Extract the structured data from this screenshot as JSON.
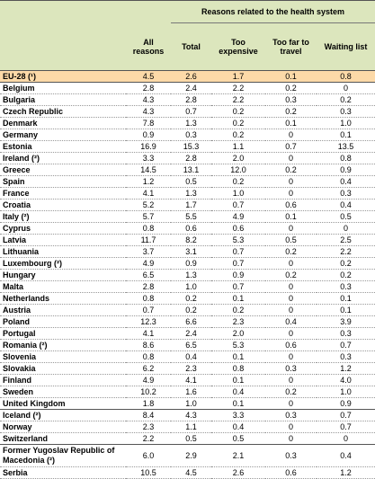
{
  "table": {
    "group_header": "Reasons related to the health system",
    "columns": [
      "All reasons",
      "Total",
      "Too expensive",
      "Too far to travel",
      "Waiting list"
    ],
    "groups": [
      {
        "rows": [
          [
            "EU-28 (¹)",
            "4.5",
            "2.6",
            "1.7",
            "0.1",
            "0.8"
          ]
        ]
      },
      {
        "rows": [
          [
            "Belgium",
            "2.8",
            "2.4",
            "2.2",
            "0.2",
            "0"
          ],
          [
            "Bulgaria",
            "4.3",
            "2.8",
            "2.2",
            "0.3",
            "0.2"
          ],
          [
            "Czech Republic",
            "4.3",
            "0.7",
            "0.2",
            "0.2",
            "0.3"
          ],
          [
            "Denmark",
            "7.8",
            "1.3",
            "0.2",
            "0.1",
            "1.0"
          ],
          [
            "Germany",
            "0.9",
            "0.3",
            "0.2",
            "0",
            "0.1"
          ],
          [
            "Estonia",
            "16.9",
            "15.3",
            "1.1",
            "0.7",
            "13.5"
          ],
          [
            "Ireland (²)",
            "3.3",
            "2.8",
            "2.0",
            "0",
            "0.8"
          ],
          [
            "Greece",
            "14.5",
            "13.1",
            "12.0",
            "0.2",
            "0.9"
          ],
          [
            "Spain",
            "1.2",
            "0.5",
            "0.2",
            "0",
            "0.4"
          ],
          [
            "France",
            "4.1",
            "1.3",
            "1.0",
            "0",
            "0.3"
          ],
          [
            "Croatia",
            "5.2",
            "1.7",
            "0.7",
            "0.6",
            "0.4"
          ],
          [
            "Italy (²)",
            "5.7",
            "5.5",
            "4.9",
            "0.1",
            "0.5"
          ],
          [
            "Cyprus",
            "0.8",
            "0.6",
            "0.6",
            "0",
            "0"
          ],
          [
            "Latvia",
            "11.7",
            "8.2",
            "5.3",
            "0.5",
            "2.5"
          ],
          [
            "Lithuania",
            "3.7",
            "3.1",
            "0.7",
            "0.2",
            "2.2"
          ],
          [
            "Luxembourg (²)",
            "4.9",
            "0.9",
            "0.7",
            "0",
            "0.2"
          ],
          [
            "Hungary",
            "6.5",
            "1.3",
            "0.9",
            "0.2",
            "0.2"
          ],
          [
            "Malta",
            "2.8",
            "1.0",
            "0.7",
            "0",
            "0.3"
          ],
          [
            "Netherlands",
            "0.8",
            "0.2",
            "0.1",
            "0",
            "0.1"
          ],
          [
            "Austria",
            "0.7",
            "0.2",
            "0.2",
            "0",
            "0.1"
          ],
          [
            "Poland",
            "12.3",
            "6.6",
            "2.3",
            "0.4",
            "3.9"
          ],
          [
            "Portugal",
            "4.1",
            "2.4",
            "2.0",
            "0",
            "0.3"
          ],
          [
            "Romania (²)",
            "8.6",
            "6.5",
            "5.3",
            "0.6",
            "0.7"
          ],
          [
            "Slovenia",
            "0.8",
            "0.4",
            "0.1",
            "0",
            "0.3"
          ],
          [
            "Slovakia",
            "6.2",
            "2.3",
            "0.8",
            "0.3",
            "1.2"
          ],
          [
            "Finland",
            "4.9",
            "4.1",
            "0.1",
            "0",
            "4.0"
          ],
          [
            "Sweden",
            "10.2",
            "1.6",
            "0.4",
            "0.2",
            "1.0"
          ],
          [
            "United Kingdom",
            "1.8",
            "1.0",
            "0.1",
            "0",
            "0.9"
          ]
        ]
      },
      {
        "rows": [
          [
            "Iceland (²)",
            "8.4",
            "4.3",
            "3.3",
            "0.3",
            "0.7"
          ],
          [
            "Norway",
            "2.3",
            "1.1",
            "0.4",
            "0",
            "0.7"
          ],
          [
            "Switzerland",
            "2.2",
            "0.5",
            "0.5",
            "0",
            "0"
          ]
        ]
      },
      {
        "rows": [
          [
            "Former Yugoslav Republic of Macedonia (²)",
            "6.0",
            "2.9",
            "2.1",
            "0.3",
            "0.4"
          ],
          [
            "Serbia",
            "10.5",
            "4.5",
            "2.6",
            "0.6",
            "1.2"
          ]
        ]
      }
    ]
  }
}
